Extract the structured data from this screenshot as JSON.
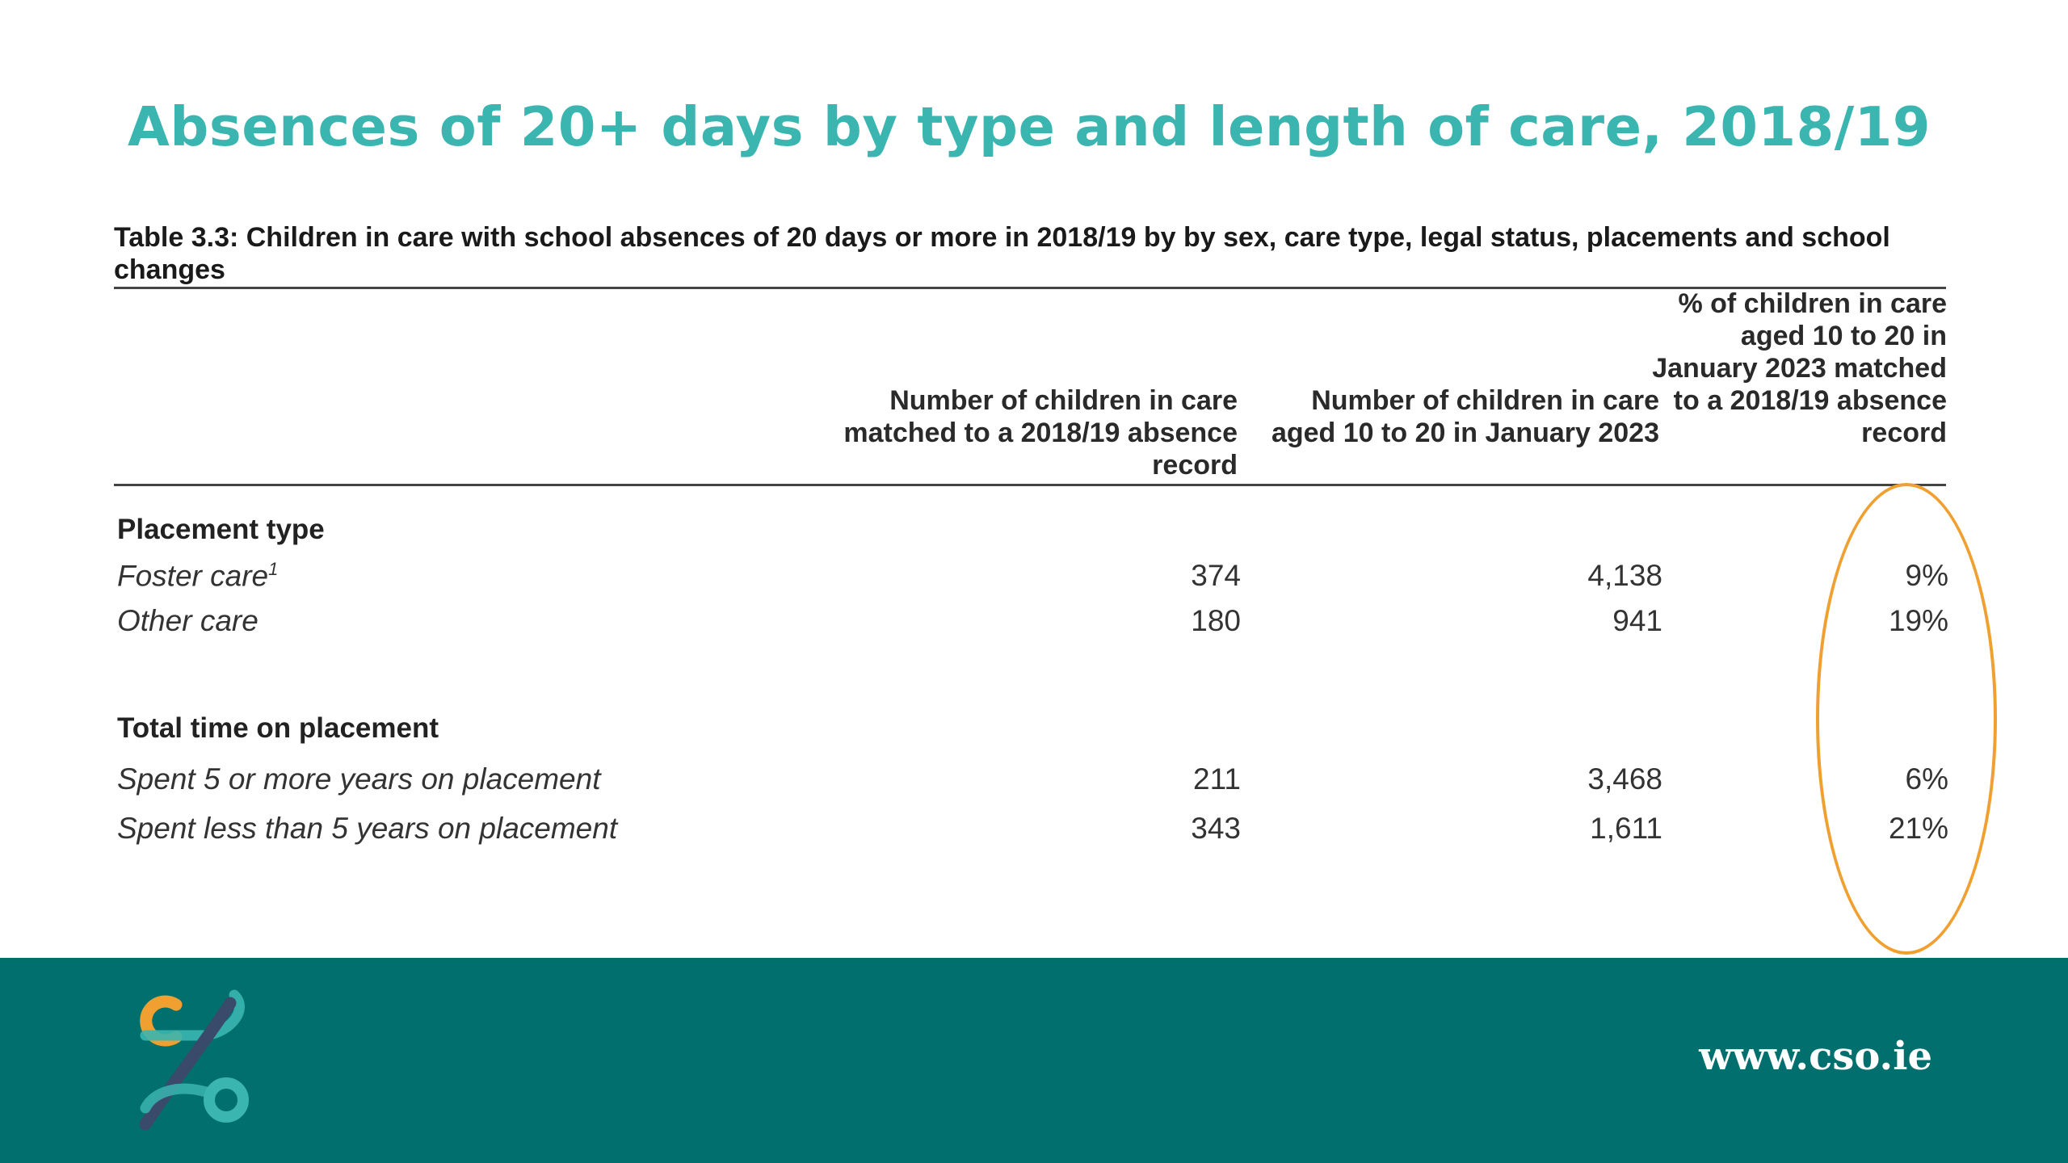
{
  "title": "Absences of 20+ days by type and length of care, 2018/19",
  "table": {
    "caption": "Table 3.3: Children in care with school absences of 20 days or more in 2018/19 by by sex, care type, legal status, placements and school changes",
    "columns": [
      "Number of children in care matched to a 2018/19 absence record",
      "Number of children in care aged 10 to 20 in January 2023",
      "% of children in care aged 10 to 20 in January 2023 matched to a 2018/19 absence record"
    ],
    "sections": [
      {
        "heading": "Placement type",
        "rows": [
          {
            "label": "Foster care",
            "footnote": "1",
            "values": [
              "374",
              "4,138",
              "9%"
            ]
          },
          {
            "label": "Other care",
            "values": [
              "180",
              "941",
              "19%"
            ]
          }
        ]
      },
      {
        "heading": "Total time on placement",
        "rows": [
          {
            "label": "Spent 5 or more years on placement",
            "values": [
              "211",
              "3,468",
              "6%"
            ]
          },
          {
            "label": "Spent less than 5 years on placement",
            "values": [
              "343",
              "1,611",
              "21%"
            ]
          }
        ]
      }
    ]
  },
  "highlight": {
    "color": "#f0a030",
    "shape": "ellipse",
    "target": "percentage-column"
  },
  "footer": {
    "url": "www.cso.ie",
    "background_color": "#006f6e",
    "logo_icon": "cso-logo-icon"
  },
  "colors": {
    "title": "#3ab5b0",
    "logo_orange": "#f0a030",
    "logo_teal": "#3ab5b0",
    "logo_navy": "#3a4a6b"
  }
}
